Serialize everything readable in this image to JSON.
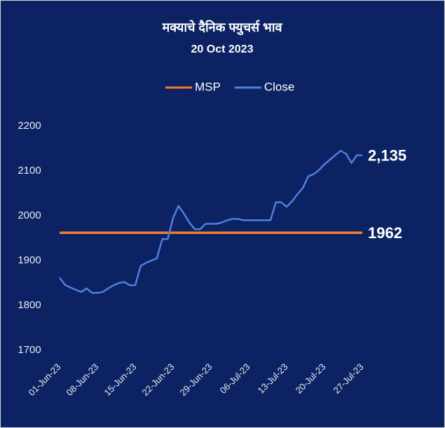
{
  "chart_data": {
    "type": "line",
    "title": "मक्याचे दैनिक फ्युचर्स भाव",
    "subtitle": "20 Oct 2023",
    "categories": [
      "01-Jun-23",
      null,
      null,
      null,
      null,
      null,
      null,
      "08-Jun-23",
      null,
      null,
      null,
      null,
      null,
      null,
      "15-Jun-23",
      null,
      null,
      null,
      null,
      null,
      null,
      "22-Jun-23",
      null,
      null,
      null,
      null,
      null,
      null,
      "29-Jun-23",
      null,
      null,
      null,
      null,
      null,
      null,
      "06-Jul-23",
      null,
      null,
      null,
      null,
      null,
      null,
      "13-Jul-23",
      null,
      null,
      null,
      null,
      null,
      null,
      "20-Jul-23",
      null,
      null,
      null,
      null,
      null,
      null,
      "27-Jul-23"
    ],
    "series": [
      {
        "name": "MSP",
        "color": "#ed7d31",
        "values": [
          1962,
          1962,
          1962,
          1962,
          1962,
          1962,
          1962,
          1962,
          1962,
          1962,
          1962,
          1962,
          1962,
          1962,
          1962,
          1962,
          1962,
          1962,
          1962,
          1962,
          1962,
          1962,
          1962,
          1962,
          1962,
          1962,
          1962,
          1962,
          1962,
          1962,
          1962,
          1962,
          1962,
          1962,
          1962,
          1962,
          1962,
          1962,
          1962,
          1962,
          1962,
          1962,
          1962,
          1962,
          1962,
          1962,
          1962,
          1962,
          1962,
          1962,
          1962,
          1962,
          1962,
          1962,
          1962,
          1962,
          1962
        ]
      },
      {
        "name": "Close",
        "color": "#4f7fe0",
        "values": [
          1862,
          1846,
          1840,
          1835,
          1830,
          1838,
          1828,
          1828,
          1830,
          1838,
          1845,
          1850,
          1852,
          1845,
          1845,
          1888,
          1895,
          1900,
          1905,
          1948,
          1948,
          1995,
          2022,
          2005,
          1985,
          1970,
          1970,
          1982,
          1982,
          1982,
          1985,
          1990,
          1993,
          1993,
          1990,
          1990,
          1990,
          1990,
          1990,
          1990,
          2030,
          2030,
          2020,
          2032,
          2048,
          2062,
          2088,
          2093,
          2102,
          2115,
          2125,
          2135,
          2145,
          2138,
          2118,
          2135,
          2135
        ],
        "value_labels": [
          null,
          null,
          null,
          null,
          null,
          null,
          null,
          null,
          null,
          null,
          null,
          null,
          null,
          null,
          null,
          null,
          null,
          null,
          null,
          null,
          null,
          null,
          null,
          null,
          null,
          null,
          null,
          null,
          null,
          null,
          null,
          null,
          null,
          null,
          null,
          null,
          null,
          null,
          null,
          null,
          null,
          null,
          null,
          null,
          null,
          null,
          null,
          null,
          null,
          null,
          null,
          null,
          null,
          null,
          null,
          null,
          "2,135"
        ]
      }
    ],
    "ylim": [
      1700,
      2200
    ],
    "yticks": [
      1700,
      1800,
      1900,
      2000,
      2100,
      2200
    ],
    "legend": "top",
    "grid": false
  }
}
